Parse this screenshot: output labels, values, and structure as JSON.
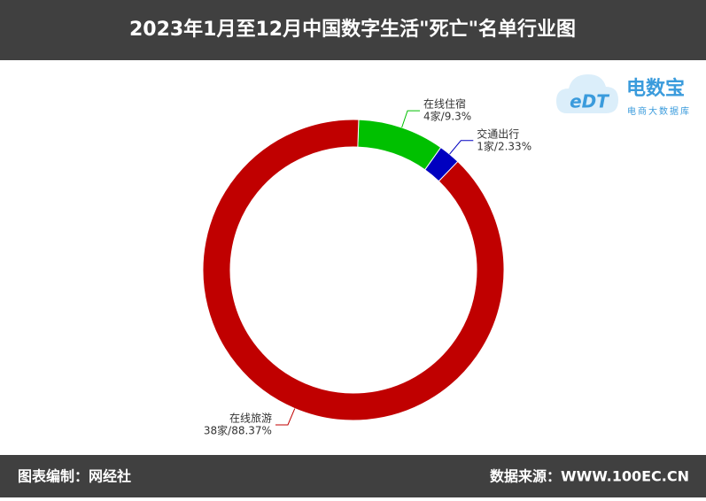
{
  "chart_data": {
    "type": "donut",
    "title": "2023年1月至12月中国数字生活\"死亡\"名单行业图",
    "categories": [
      "在线住宿",
      "交通出行",
      "在线旅游"
    ],
    "values": [
      4,
      1,
      38
    ],
    "value_labels": [
      "4家/9.3%",
      "1家/2.33%",
      "38家/88.37%"
    ],
    "colors": [
      "#00c000",
      "#0000c0",
      "#c00000"
    ]
  },
  "logo": {
    "mark": "eDT",
    "name": "电数宝",
    "tagline": "电商大数据库"
  },
  "footer": {
    "left": "图表编制：网经社",
    "right": "数据来源：WWW.100EC.CN"
  }
}
